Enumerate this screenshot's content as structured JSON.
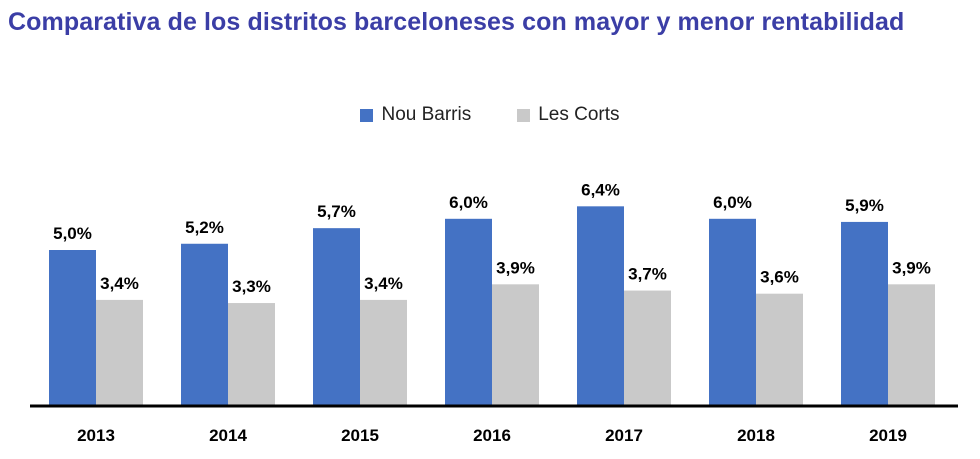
{
  "chart_data": {
    "type": "bar",
    "title": "Comparativa de los distritos barceloneses con mayor y menor rentabilidad",
    "categories": [
      "2013",
      "2014",
      "2015",
      "2016",
      "2017",
      "2018",
      "2019"
    ],
    "series": [
      {
        "name": "Nou Barris",
        "values": [
          5.0,
          5.2,
          5.7,
          6.0,
          6.4,
          6.0,
          5.9
        ],
        "labels": [
          "5,0%",
          "5,2%",
          "5,7%",
          "6,0%",
          "6,4%",
          "6,0%",
          "5,9%"
        ],
        "color": "#4472C4"
      },
      {
        "name": "Les Corts",
        "values": [
          3.4,
          3.3,
          3.4,
          3.9,
          3.7,
          3.6,
          3.9
        ],
        "labels": [
          "3,4%",
          "3,3%",
          "3,4%",
          "3,9%",
          "3,7%",
          "3,6%",
          "3,9%"
        ],
        "color": "#C9C9C9"
      }
    ],
    "legend_position": "top-center",
    "grid": false,
    "title_color": "#3B3EA6",
    "axis_color": "#000000"
  }
}
